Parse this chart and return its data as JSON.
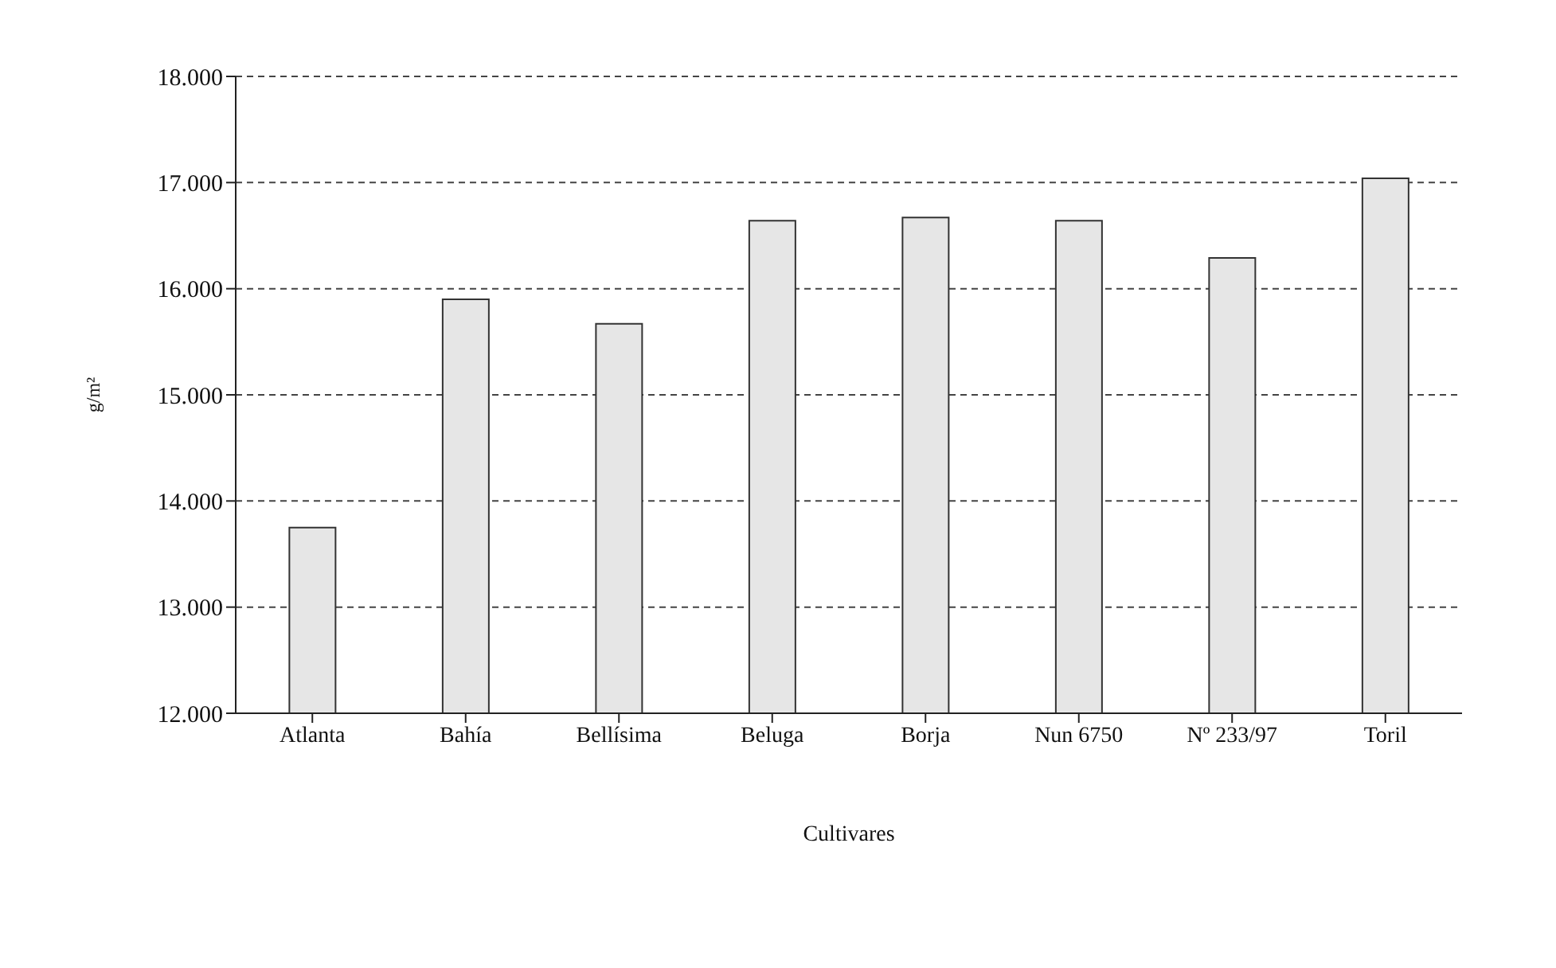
{
  "chart_data": {
    "type": "bar",
    "xlabel": "Cultivares",
    "ylabel": "g/m²",
    "categories": [
      "Atlanta",
      "Bahía",
      "Bellísima",
      "Beluga",
      "Borja",
      "Nun 6750",
      "Nº 233/97",
      "Toril"
    ],
    "values": [
      13750,
      15900,
      15670,
      16640,
      16670,
      16640,
      16290,
      17040
    ],
    "color": "#e6e6e6",
    "ylim": [
      12000,
      18000
    ],
    "yticks": [
      {
        "value": 12000,
        "label": "12.000"
      },
      {
        "value": 13000,
        "label": "13.000"
      },
      {
        "value": 14000,
        "label": "14.000"
      },
      {
        "value": 15000,
        "label": "15.000"
      },
      {
        "value": 16000,
        "label": "16.000"
      },
      {
        "value": 17000,
        "label": "17.000"
      },
      {
        "value": 18000,
        "label": "18.000"
      }
    ],
    "grid": "y",
    "line_style": "dashed"
  }
}
